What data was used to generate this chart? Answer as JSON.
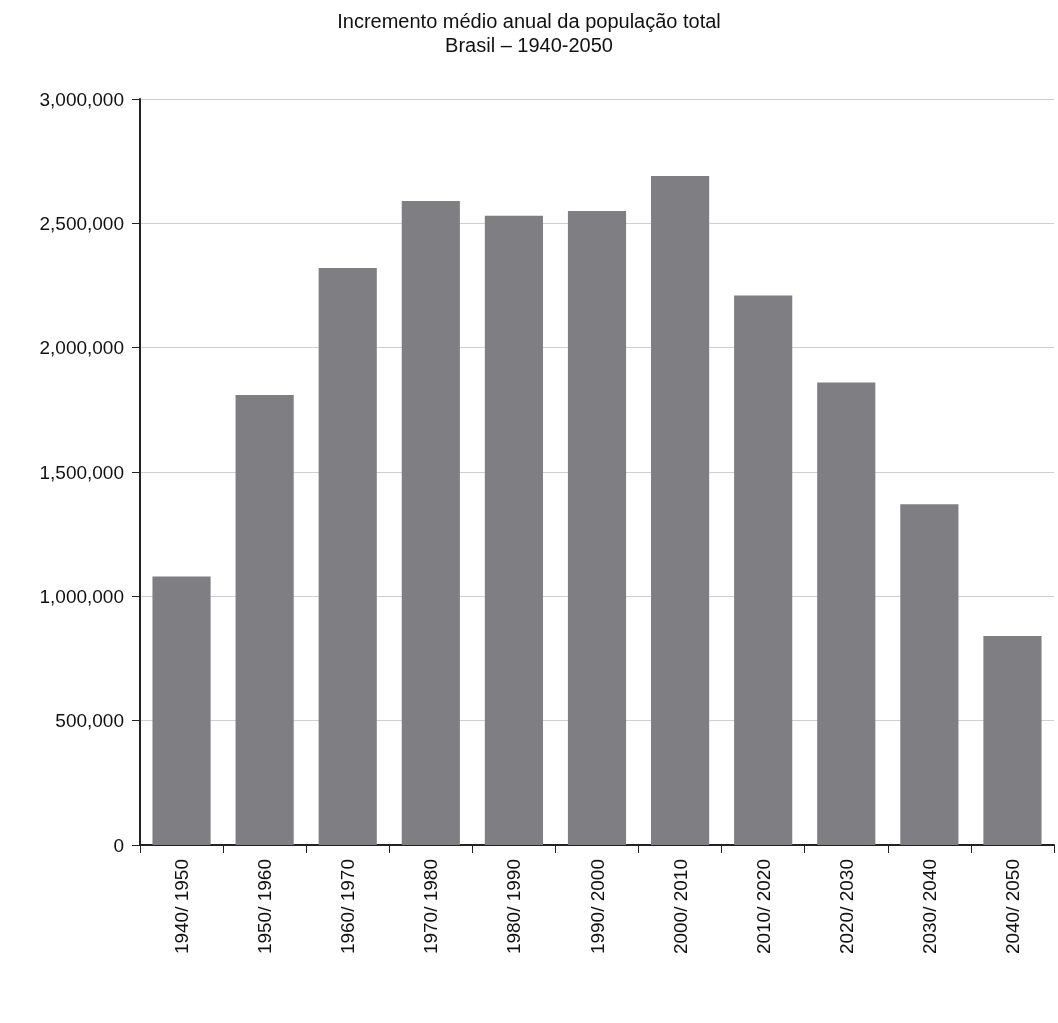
{
  "chart_data": {
    "type": "bar",
    "title": "Incremento médio anual da população total",
    "subtitle": "Brasil – 1940-2050",
    "categories": [
      "1940/ 1950",
      "1950/ 1960",
      "1960/ 1970",
      "1970/ 1980",
      "1980/ 1990",
      "1990/ 2000",
      "2000/ 2010",
      "2010/ 2020",
      "2020/ 2030",
      "2030/ 2040",
      "2040/ 2050"
    ],
    "values": [
      1080000,
      1810000,
      2320000,
      2590000,
      2530000,
      2550000,
      2690000,
      2210000,
      1860000,
      1370000,
      840000
    ],
    "color": "#7f7f83",
    "ylim": [
      0,
      3000000
    ],
    "yticks": [
      {
        "value": 0,
        "label": "0"
      },
      {
        "value": 500000,
        "label": "500,000"
      },
      {
        "value": 1000000,
        "label": "1,000,000"
      },
      {
        "value": 1500000,
        "label": "1,500,000"
      },
      {
        "value": 2000000,
        "label": "2,000,000"
      },
      {
        "value": 2500000,
        "label": "2,500,000"
      },
      {
        "value": 3000000,
        "label": "3,000,000"
      }
    ],
    "grid": "y"
  }
}
